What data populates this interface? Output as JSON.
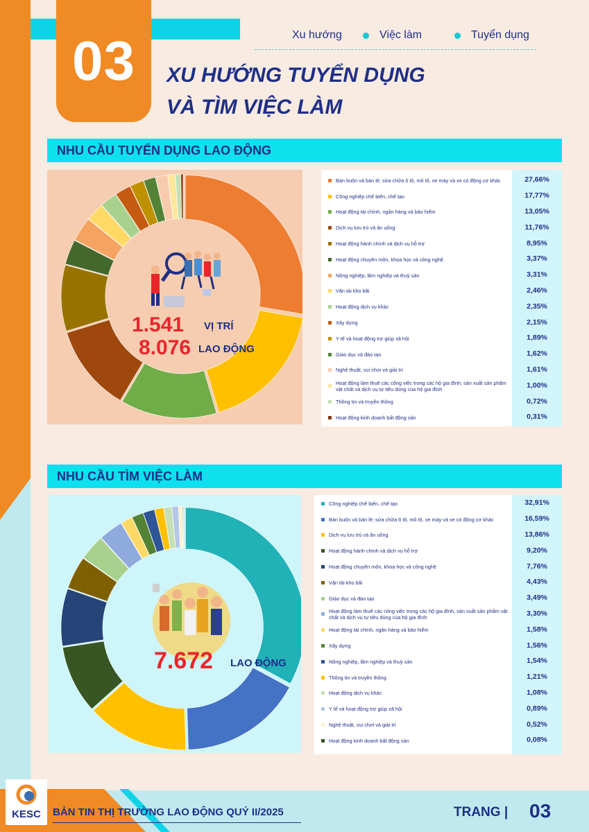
{
  "header": {
    "number": "03",
    "tags": [
      "Xu hướng",
      "Việc làm",
      "Tuyển dụng"
    ],
    "title_line1": "XU HƯỚNG TUYỂN DỤNG",
    "title_line2": "VÀ TÌM VIỆC LÀM"
  },
  "section1": {
    "title": "NHU CẦU TUYỂN DỤNG LAO ĐỘNG",
    "positions_value": "1.541",
    "positions_label": "VỊ TRÍ",
    "workers_value": "8.076",
    "workers_label": "LAO ĐỘNG"
  },
  "section2": {
    "title": "NHU CẦU TÌM VIỆC LÀM",
    "workers_value": "7.672",
    "workers_label": "LAO ĐỘNG"
  },
  "footer": {
    "logo_text": "KESC",
    "bulletin": "BẢN TIN THỊ TRƯỜNG LAO ĐỘNG QUÝ II/2025",
    "page_label": "TRANG |",
    "page_number": "03"
  },
  "chart_data": [
    {
      "type": "pie",
      "categories": [
        "Bán buôn và bán lẻ; sửa chữa ô tô, mô tô, xe máy và xe có động cơ khác",
        "Công nghiệp chế biến, chế tạo",
        "Hoạt động tài chính, ngân hàng và bảo hiểm",
        "Dịch vụ lưu trú và ăn uống",
        "Hoạt động hành chính và dịch vụ hỗ trợ",
        "Hoạt động chuyên môn, khoa học và công nghệ",
        "Nông nghiệp, lâm nghiệp và thuỷ sản",
        "Vận tải kho bãi",
        "Hoạt động dịch vụ khác",
        "Xây dựng",
        "Y tế và hoạt động trợ giúp xã hội",
        "Giáo dục và đào tạo",
        "Nghệ thuật, vui chơi và giải trí",
        "Hoạt động làm thuê các công việc trong các hộ gia đình, sản xuất sản phẩm vật chất và dịch vụ tự tiêu dùng của hộ gia đình",
        "Thông tin và truyền thông",
        "Hoạt động kinh doanh bất động sản"
      ],
      "labels": [
        "27,66%",
        "17,77%",
        "13,05%",
        "11,76%",
        "8,95%",
        "3,37%",
        "3,31%",
        "2,46%",
        "2,35%",
        "2,15%",
        "1,89%",
        "1,62%",
        "1,61%",
        "1,00%",
        "0,72%",
        "0,31%"
      ],
      "values": [
        27.66,
        17.77,
        13.05,
        11.76,
        8.95,
        3.37,
        3.31,
        2.46,
        2.35,
        2.15,
        1.89,
        1.62,
        1.61,
        1.0,
        0.72,
        0.31
      ],
      "colors": [
        "#ed7d31",
        "#ffc000",
        "#70ad47",
        "#9e480e",
        "#997300",
        "#43682b",
        "#f4a460",
        "#ffd966",
        "#a9d18e",
        "#c55a11",
        "#bf9000",
        "#548235",
        "#f8cbad",
        "#ffe699",
        "#c5e0b4",
        "#843c0c"
      ]
    },
    {
      "type": "pie",
      "categories": [
        "Công nghiệp chế biến, chế tạo",
        "Bán buôn và bán lẻ; sửa chữa ô tô, mô tô, xe máy và xe có động cơ khác",
        "Dịch vụ lưu trú và ăn uống",
        "Hoạt động hành chính và dịch vụ hỗ trợ",
        "Hoạt động chuyên môn, khoa học và công nghệ",
        "Vận tải kho bãi",
        "Giáo dục và đào tạo",
        "Hoạt động làm thuê các công việc trong các hộ gia đình, sản xuất sản phẩm vật chất và dịch vụ tự tiêu dùng của hộ gia đình",
        "Hoạt động tài chính, ngân hàng và bảo hiểm",
        "Xây dựng",
        "Nông nghiệp, lâm nghiệp và thuỷ sản",
        "Thông tin và truyền thông",
        "Hoạt động dịch vụ khác",
        "Y tế và hoạt động trợ giúp xã hội",
        "Nghệ thuật, vui chơi và giải trí",
        "Hoạt động kinh doanh bất động sản"
      ],
      "labels": [
        "32,91%",
        "16,59%",
        "13,86%",
        "9,20%",
        "7,76%",
        "4,43%",
        "3,49%",
        "3,30%",
        "1,58%",
        "1,56%",
        "1,54%",
        "1,21%",
        "1,08%",
        "0,89%",
        "0,52%",
        "0,08%"
      ],
      "values": [
        32.91,
        16.59,
        13.86,
        9.2,
        7.76,
        4.43,
        3.49,
        3.3,
        1.58,
        1.56,
        1.54,
        1.21,
        1.08,
        0.89,
        0.52,
        0.08
      ],
      "colors": [
        "#20b2b7",
        "#4472c4",
        "#ffc000",
        "#375623",
        "#264478",
        "#7f6000",
        "#a9d18e",
        "#8faadc",
        "#ffd966",
        "#548235",
        "#2f5597",
        "#ffc000",
        "#c5e0b4",
        "#b4c7e7",
        "#fff2cc",
        "#375623"
      ]
    }
  ]
}
